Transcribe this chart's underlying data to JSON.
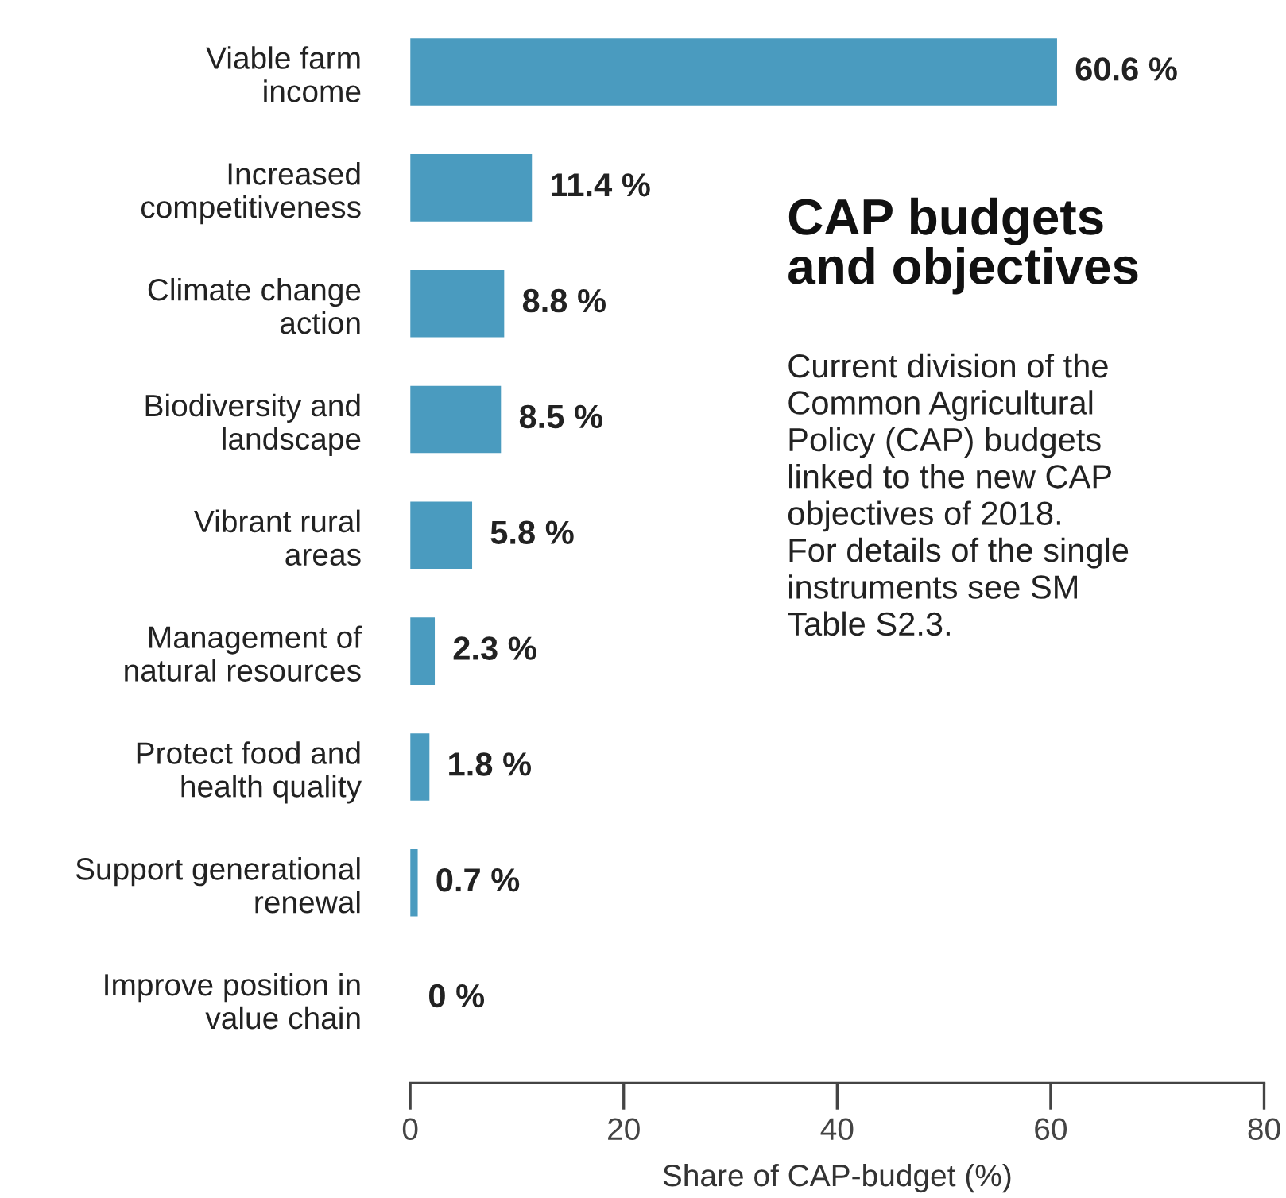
{
  "chart_data": {
    "type": "bar",
    "orientation": "horizontal",
    "title": "CAP budgets\nand objectives",
    "subtitle": "Current division of the\nCommon Agricultural\nPolicy (CAP) budgets\nlinked to the new CAP\nobjectives of 2018.\nFor details of the single\ninstruments see SM\nTable S2.3.",
    "xlabel": "Share of CAP-budget (%)",
    "categories": [
      "Viable farm\nincome",
      "Increased\ncompetitiveness",
      "Climate change\naction",
      "Biodiversity and\nlandscape",
      "Vibrant rural\nareas",
      "Management of\nnatural resources",
      "Protect food and\nhealth quality",
      "Support generational\nrenewal",
      "Improve position in\nvalue chain"
    ],
    "values": [
      60.6,
      11.4,
      8.8,
      8.5,
      5.8,
      2.3,
      1.8,
      0.7,
      0
    ],
    "value_labels": [
      "60.6 %",
      "11.4 %",
      "8.8 %",
      "8.5 %",
      "5.8 %",
      "2.3 %",
      "1.8 %",
      "0.7 %",
      "0 %"
    ],
    "color": "#4a9bbf",
    "xlim": [
      0,
      80
    ],
    "xticks": [
      0,
      20,
      40,
      60,
      80
    ],
    "grid": false,
    "legend": false
  }
}
